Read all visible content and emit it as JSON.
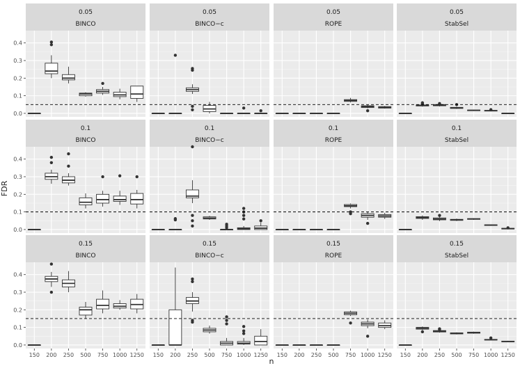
{
  "chart_data": {
    "type": "boxplot",
    "xlabel": "n",
    "ylabel": "FDR",
    "categories": [
      "150",
      "200",
      "250",
      "500",
      "750",
      "1000",
      "1250"
    ],
    "ylim": [
      -0.02,
      0.47
    ],
    "yticks": [
      0.0,
      0.1,
      0.2,
      0.3,
      0.4
    ],
    "ytick_labels": [
      "0.0",
      "0.1",
      "0.2",
      "0.3",
      "0.4"
    ],
    "rows": [
      {
        "alpha": "0.05",
        "threshold": 0.05
      },
      {
        "alpha": "0.1",
        "threshold": 0.1
      },
      {
        "alpha": "0.15",
        "threshold": 0.15
      }
    ],
    "methods": [
      "BINCO",
      "BINCO−c",
      "ROPE",
      "StabSel"
    ],
    "panels": [
      {
        "row": 0,
        "col": 0,
        "boxes": [
          {
            "q1": 0,
            "med": 0,
            "q3": 0,
            "lo": 0,
            "hi": 0,
            "out": []
          },
          {
            "q1": 0.225,
            "med": 0.24,
            "q3": 0.285,
            "lo": 0.2,
            "hi": 0.33,
            "out": [
              0.39,
              0.405
            ]
          },
          {
            "q1": 0.19,
            "med": 0.2,
            "q3": 0.22,
            "lo": 0.17,
            "hi": 0.265,
            "out": []
          },
          {
            "q1": 0.1,
            "med": 0.11,
            "q3": 0.115,
            "lo": 0.095,
            "hi": 0.12,
            "out": []
          },
          {
            "q1": 0.115,
            "med": 0.125,
            "q3": 0.135,
            "lo": 0.105,
            "hi": 0.15,
            "out": [
              0.17
            ]
          },
          {
            "q1": 0.095,
            "med": 0.105,
            "q3": 0.12,
            "lo": 0.08,
            "hi": 0.14,
            "out": []
          },
          {
            "q1": 0.085,
            "med": 0.11,
            "q3": 0.155,
            "lo": 0.065,
            "hi": 0.155,
            "out": []
          }
        ]
      },
      {
        "row": 0,
        "col": 1,
        "boxes": [
          {
            "q1": 0,
            "med": 0,
            "q3": 0,
            "lo": 0,
            "hi": 0,
            "out": []
          },
          {
            "q1": 0,
            "med": 0,
            "q3": 0,
            "lo": 0,
            "hi": 0,
            "out": [
              0.33
            ]
          },
          {
            "q1": 0.125,
            "med": 0.135,
            "q3": 0.145,
            "lo": 0.11,
            "hi": 0.165,
            "out": [
              0.02,
              0.04,
              0.245,
              0.255
            ]
          },
          {
            "q1": 0.01,
            "med": 0.025,
            "q3": 0.045,
            "lo": 0,
            "hi": 0.065,
            "out": []
          },
          {
            "q1": 0,
            "med": 0,
            "q3": 0,
            "lo": 0,
            "hi": 0,
            "out": []
          },
          {
            "q1": 0,
            "med": 0,
            "q3": 0,
            "lo": 0,
            "hi": 0,
            "out": [
              0.03
            ]
          },
          {
            "q1": 0,
            "med": 0,
            "q3": 0,
            "lo": 0,
            "hi": 0,
            "out": [
              0.015
            ]
          }
        ]
      },
      {
        "row": 0,
        "col": 2,
        "boxes": [
          {
            "q1": 0,
            "med": 0,
            "q3": 0,
            "lo": 0,
            "hi": 0,
            "out": []
          },
          {
            "q1": 0,
            "med": 0,
            "q3": 0,
            "lo": 0,
            "hi": 0,
            "out": []
          },
          {
            "q1": 0,
            "med": 0,
            "q3": 0,
            "lo": 0,
            "hi": 0,
            "out": []
          },
          {
            "q1": 0,
            "med": 0,
            "q3": 0,
            "lo": 0,
            "hi": 0,
            "out": []
          },
          {
            "q1": 0.068,
            "med": 0.073,
            "q3": 0.078,
            "lo": 0.062,
            "hi": 0.088,
            "out": []
          },
          {
            "q1": 0.033,
            "med": 0.038,
            "q3": 0.043,
            "lo": 0.028,
            "hi": 0.048,
            "out": [
              0.015
            ]
          },
          {
            "q1": 0.03,
            "med": 0.034,
            "q3": 0.038,
            "lo": 0.027,
            "hi": 0.042,
            "out": []
          }
        ]
      },
      {
        "row": 0,
        "col": 3,
        "boxes": [
          {
            "q1": 0,
            "med": 0,
            "q3": 0,
            "lo": 0,
            "hi": 0,
            "out": []
          },
          {
            "q1": 0.042,
            "med": 0.045,
            "q3": 0.048,
            "lo": 0.038,
            "hi": 0.052,
            "out": [
              0.055,
              0.06
            ]
          },
          {
            "q1": 0.043,
            "med": 0.047,
            "q3": 0.05,
            "lo": 0.039,
            "hi": 0.054,
            "out": [
              0.056
            ]
          },
          {
            "q1": 0.028,
            "med": 0.031,
            "q3": 0.034,
            "lo": 0.025,
            "hi": 0.038,
            "out": [
              0.05
            ]
          },
          {
            "q1": 0.015,
            "med": 0.017,
            "q3": 0.019,
            "lo": 0.013,
            "hi": 0.021,
            "out": []
          },
          {
            "q1": 0.013,
            "med": 0.015,
            "q3": 0.017,
            "lo": 0.011,
            "hi": 0.019,
            "out": [
              0.021
            ]
          },
          {
            "q1": 0,
            "med": 0,
            "q3": 0,
            "lo": 0,
            "hi": 0,
            "out": []
          }
        ]
      },
      {
        "row": 1,
        "col": 0,
        "boxes": [
          {
            "q1": 0,
            "med": 0,
            "q3": 0,
            "lo": 0,
            "hi": 0,
            "out": []
          },
          {
            "q1": 0.285,
            "med": 0.3,
            "q3": 0.32,
            "lo": 0.26,
            "hi": 0.34,
            "out": [
              0.38,
              0.41
            ]
          },
          {
            "q1": 0.265,
            "med": 0.28,
            "q3": 0.3,
            "lo": 0.25,
            "hi": 0.32,
            "out": [
              0.36,
              0.43
            ]
          },
          {
            "q1": 0.14,
            "med": 0.155,
            "q3": 0.18,
            "lo": 0.12,
            "hi": 0.205,
            "out": []
          },
          {
            "q1": 0.15,
            "med": 0.17,
            "q3": 0.2,
            "lo": 0.13,
            "hi": 0.22,
            "out": [
              0.3
            ]
          },
          {
            "q1": 0.16,
            "med": 0.17,
            "q3": 0.19,
            "lo": 0.14,
            "hi": 0.22,
            "out": [
              0.305
            ]
          },
          {
            "q1": 0.145,
            "med": 0.17,
            "q3": 0.205,
            "lo": 0.12,
            "hi": 0.225,
            "out": [
              0.3
            ]
          }
        ]
      },
      {
        "row": 1,
        "col": 1,
        "boxes": [
          {
            "q1": 0,
            "med": 0,
            "q3": 0,
            "lo": 0,
            "hi": 0,
            "out": []
          },
          {
            "q1": 0,
            "med": 0,
            "q3": 0,
            "lo": 0,
            "hi": 0,
            "out": [
              0.055,
              0.062
            ]
          },
          {
            "q1": 0.18,
            "med": 0.19,
            "q3": 0.225,
            "lo": 0.15,
            "hi": 0.28,
            "out": [
              0.02,
              0.05,
              0.08,
              0.47
            ]
          },
          {
            "q1": 0.06,
            "med": 0.065,
            "q3": 0.072,
            "lo": 0.055,
            "hi": 0.078,
            "out": []
          },
          {
            "q1": 0,
            "med": 0,
            "q3": 0,
            "lo": 0,
            "hi": 0,
            "out": [
              0.01,
              0.02,
              0.03
            ]
          },
          {
            "q1": 0,
            "med": 0.005,
            "q3": 0.01,
            "lo": 0,
            "hi": 0.02,
            "out": [
              0.06,
              0.08,
              0.1,
              0.12
            ]
          },
          {
            "q1": 0,
            "med": 0.008,
            "q3": 0.02,
            "lo": 0,
            "hi": 0.04,
            "out": [
              0.05
            ]
          }
        ]
      },
      {
        "row": 1,
        "col": 2,
        "boxes": [
          {
            "q1": 0,
            "med": 0,
            "q3": 0,
            "lo": 0,
            "hi": 0,
            "out": []
          },
          {
            "q1": 0,
            "med": 0,
            "q3": 0,
            "lo": 0,
            "hi": 0,
            "out": []
          },
          {
            "q1": 0,
            "med": 0,
            "q3": 0,
            "lo": 0,
            "hi": 0,
            "out": []
          },
          {
            "q1": 0,
            "med": 0,
            "q3": 0,
            "lo": 0,
            "hi": 0,
            "out": []
          },
          {
            "q1": 0.13,
            "med": 0.135,
            "q3": 0.142,
            "lo": 0.12,
            "hi": 0.148,
            "out": [
              0.09,
              0.1
            ]
          },
          {
            "q1": 0.07,
            "med": 0.08,
            "q3": 0.09,
            "lo": 0.055,
            "hi": 0.1,
            "out": [
              0.035
            ]
          },
          {
            "q1": 0.07,
            "med": 0.077,
            "q3": 0.085,
            "lo": 0.06,
            "hi": 0.095,
            "out": []
          }
        ]
      },
      {
        "row": 1,
        "col": 3,
        "boxes": [
          {
            "q1": 0,
            "med": 0,
            "q3": 0,
            "lo": 0,
            "hi": 0,
            "out": []
          },
          {
            "q1": 0.063,
            "med": 0.068,
            "q3": 0.073,
            "lo": 0.055,
            "hi": 0.08,
            "out": []
          },
          {
            "q1": 0.055,
            "med": 0.06,
            "q3": 0.066,
            "lo": 0.048,
            "hi": 0.072,
            "out": [
              0.08
            ]
          },
          {
            "q1": 0.052,
            "med": 0.055,
            "q3": 0.058,
            "lo": 0.048,
            "hi": 0.062,
            "out": []
          },
          {
            "q1": 0.058,
            "med": 0.06,
            "q3": 0.062,
            "lo": 0.055,
            "hi": 0.064,
            "out": []
          },
          {
            "q1": 0.023,
            "med": 0.025,
            "q3": 0.027,
            "lo": 0.021,
            "hi": 0.029,
            "out": []
          },
          {
            "q1": 0.003,
            "med": 0.005,
            "q3": 0.007,
            "lo": 0.001,
            "hi": 0.009,
            "out": [
              0.01
            ]
          }
        ]
      },
      {
        "row": 2,
        "col": 0,
        "boxes": [
          {
            "q1": 0,
            "med": 0,
            "q3": 0,
            "lo": 0,
            "hi": 0,
            "out": []
          },
          {
            "q1": 0.36,
            "med": 0.375,
            "q3": 0.39,
            "lo": 0.33,
            "hi": 0.415,
            "out": [
              0.3,
              0.46
            ]
          },
          {
            "q1": 0.33,
            "med": 0.35,
            "q3": 0.37,
            "lo": 0.3,
            "hi": 0.42,
            "out": []
          },
          {
            "q1": 0.17,
            "med": 0.2,
            "q3": 0.215,
            "lo": 0.15,
            "hi": 0.245,
            "out": []
          },
          {
            "q1": 0.205,
            "med": 0.225,
            "q3": 0.26,
            "lo": 0.18,
            "hi": 0.31,
            "out": []
          },
          {
            "q1": 0.21,
            "med": 0.22,
            "q3": 0.235,
            "lo": 0.2,
            "hi": 0.255,
            "out": []
          },
          {
            "q1": 0.205,
            "med": 0.23,
            "q3": 0.26,
            "lo": 0.18,
            "hi": 0.29,
            "out": []
          }
        ]
      },
      {
        "row": 2,
        "col": 1,
        "boxes": [
          {
            "q1": 0,
            "med": 0,
            "q3": 0,
            "lo": 0,
            "hi": 0,
            "out": []
          },
          {
            "q1": 0,
            "med": 0,
            "q3": 0.2,
            "lo": 0,
            "hi": 0.44,
            "out": []
          },
          {
            "q1": 0.235,
            "med": 0.25,
            "q3": 0.27,
            "lo": 0.19,
            "hi": 0.3,
            "out": [
              0.13,
              0.14,
              0.36,
              0.375
            ]
          },
          {
            "q1": 0.075,
            "med": 0.085,
            "q3": 0.095,
            "lo": 0.065,
            "hi": 0.11,
            "out": []
          },
          {
            "q1": 0,
            "med": 0.01,
            "q3": 0.02,
            "lo": 0,
            "hi": 0.04,
            "out": [
              0.12,
              0.14,
              0.16
            ]
          },
          {
            "q1": 0.005,
            "med": 0.01,
            "q3": 0.02,
            "lo": 0,
            "hi": 0.04,
            "out": [
              0.065,
              0.08,
              0.105
            ]
          },
          {
            "q1": 0,
            "med": 0.02,
            "q3": 0.05,
            "lo": 0,
            "hi": 0.09,
            "out": []
          }
        ]
      },
      {
        "row": 2,
        "col": 2,
        "boxes": [
          {
            "q1": 0,
            "med": 0,
            "q3": 0,
            "lo": 0,
            "hi": 0,
            "out": []
          },
          {
            "q1": 0,
            "med": 0,
            "q3": 0,
            "lo": 0,
            "hi": 0,
            "out": []
          },
          {
            "q1": 0,
            "med": 0,
            "q3": 0,
            "lo": 0,
            "hi": 0,
            "out": []
          },
          {
            "q1": 0,
            "med": 0,
            "q3": 0,
            "lo": 0,
            "hi": 0,
            "out": []
          },
          {
            "q1": 0.172,
            "med": 0.18,
            "q3": 0.188,
            "lo": 0.165,
            "hi": 0.195,
            "out": [
              0.125
            ]
          },
          {
            "q1": 0.11,
            "med": 0.12,
            "q3": 0.13,
            "lo": 0.095,
            "hi": 0.145,
            "out": [
              0.05
            ]
          },
          {
            "q1": 0.1,
            "med": 0.11,
            "q3": 0.125,
            "lo": 0.09,
            "hi": 0.14,
            "out": []
          }
        ]
      },
      {
        "row": 2,
        "col": 3,
        "boxes": [
          {
            "q1": 0,
            "med": 0,
            "q3": 0,
            "lo": 0,
            "hi": 0,
            "out": []
          },
          {
            "q1": 0.09,
            "med": 0.095,
            "q3": 0.1,
            "lo": 0.085,
            "hi": 0.105,
            "out": [
              0.075
            ]
          },
          {
            "q1": 0.074,
            "med": 0.078,
            "q3": 0.082,
            "lo": 0.07,
            "hi": 0.086,
            "out": [
              0.088,
              0.092
            ]
          },
          {
            "q1": 0.063,
            "med": 0.066,
            "q3": 0.069,
            "lo": 0.06,
            "hi": 0.072,
            "out": []
          },
          {
            "q1": 0.067,
            "med": 0.07,
            "q3": 0.073,
            "lo": 0.064,
            "hi": 0.076,
            "out": []
          },
          {
            "q1": 0.028,
            "med": 0.03,
            "q3": 0.032,
            "lo": 0.026,
            "hi": 0.034,
            "out": [
              0.04
            ]
          },
          {
            "q1": 0.018,
            "med": 0.02,
            "q3": 0.022,
            "lo": 0.016,
            "hi": 0.024,
            "out": []
          }
        ]
      }
    ]
  }
}
